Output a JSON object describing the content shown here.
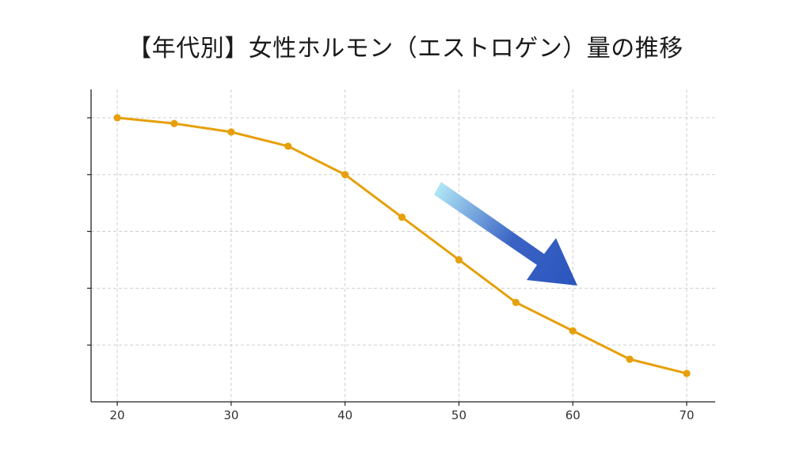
{
  "title": "【年代別】女性ホルモン（エストロゲン）量の推移",
  "chart_data": {
    "type": "line",
    "title": "【年代別】女性ホルモン（エストロゲン）量の推移",
    "xlabel": "",
    "ylabel": "",
    "x": [
      20,
      25,
      30,
      35,
      40,
      45,
      50,
      55,
      60,
      65,
      70
    ],
    "series": [
      {
        "values": [
          100,
          98,
          95,
          90,
          80,
          65,
          50,
          35,
          25,
          15,
          10
        ],
        "color": "#e6a00b"
      }
    ],
    "xticks": [
      20,
      30,
      40,
      50,
      60,
      70
    ],
    "xlim": [
      17.7,
      72.5
    ],
    "ylim": [
      0,
      110
    ],
    "yticks": [
      20,
      40,
      60,
      80,
      100
    ],
    "ytick_labels_shown": false,
    "grid": true,
    "legend": "none",
    "annotation": {
      "type": "arrow",
      "direction": "down-right",
      "meaning": "decline",
      "gradient_colors": [
        "#aee4f5",
        "#3a63c4",
        "#2b56bd"
      ]
    }
  }
}
